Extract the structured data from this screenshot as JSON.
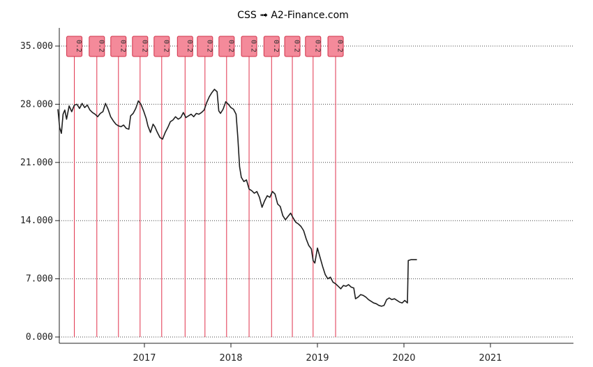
{
  "title": "CSS ➟ A2-Finance.com",
  "chart_data": {
    "type": "line",
    "title": "CSS ➟ A2-Finance.com",
    "xlabel": "",
    "ylabel": "",
    "ylim": [
      0,
      35
    ],
    "xlim": [
      2016.0,
      2022.0
    ],
    "yticks": [
      0,
      7,
      14,
      21,
      28,
      35
    ],
    "ytick_labels": [
      "0.000",
      "7.000",
      "14.000",
      "21.000",
      "28.000",
      "35.000"
    ],
    "xticks": [
      2017,
      2018,
      2019,
      2020,
      2021
    ],
    "xtick_labels": [
      "2017",
      "2018",
      "2019",
      "2020",
      "2021"
    ],
    "grid": "horizontal dotted",
    "series": [
      {
        "values": [
          [
            2016.0,
            27.4
          ],
          [
            2016.02,
            25.2
          ],
          [
            2016.04,
            24.5
          ],
          [
            2016.06,
            26.8
          ],
          [
            2016.08,
            27.3
          ],
          [
            2016.1,
            26.2
          ],
          [
            2016.13,
            27.8
          ],
          [
            2016.16,
            27.1
          ],
          [
            2016.19,
            27.9
          ],
          [
            2016.22,
            28.0
          ],
          [
            2016.25,
            27.5
          ],
          [
            2016.28,
            28.1
          ],
          [
            2016.31,
            27.6
          ],
          [
            2016.34,
            27.9
          ],
          [
            2016.37,
            27.3
          ],
          [
            2016.4,
            27.0
          ],
          [
            2016.43,
            26.8
          ],
          [
            2016.46,
            26.5
          ],
          [
            2016.49,
            26.9
          ],
          [
            2016.52,
            27.1
          ],
          [
            2016.55,
            28.1
          ],
          [
            2016.58,
            27.4
          ],
          [
            2016.61,
            26.5
          ],
          [
            2016.64,
            26.0
          ],
          [
            2016.67,
            25.6
          ],
          [
            2016.7,
            25.4
          ],
          [
            2016.73,
            25.3
          ],
          [
            2016.76,
            25.5
          ],
          [
            2016.79,
            25.1
          ],
          [
            2016.82,
            25.0
          ],
          [
            2016.84,
            26.6
          ],
          [
            2016.87,
            26.9
          ],
          [
            2016.9,
            27.5
          ],
          [
            2016.93,
            28.4
          ],
          [
            2016.96,
            28.0
          ],
          [
            2016.99,
            27.2
          ],
          [
            2017.02,
            26.3
          ],
          [
            2017.04,
            25.4
          ],
          [
            2017.07,
            24.6
          ],
          [
            2017.1,
            25.6
          ],
          [
            2017.12,
            25.3
          ],
          [
            2017.15,
            24.6
          ],
          [
            2017.18,
            24.0
          ],
          [
            2017.21,
            23.8
          ],
          [
            2017.24,
            24.6
          ],
          [
            2017.27,
            25.2
          ],
          [
            2017.3,
            25.9
          ],
          [
            2017.33,
            26.1
          ],
          [
            2017.36,
            26.5
          ],
          [
            2017.39,
            26.2
          ],
          [
            2017.42,
            26.4
          ],
          [
            2017.45,
            27.0
          ],
          [
            2017.48,
            26.4
          ],
          [
            2017.51,
            26.6
          ],
          [
            2017.54,
            26.8
          ],
          [
            2017.57,
            26.5
          ],
          [
            2017.6,
            26.9
          ],
          [
            2017.63,
            26.8
          ],
          [
            2017.66,
            27.0
          ],
          [
            2017.69,
            27.3
          ],
          [
            2017.72,
            28.2
          ],
          [
            2017.75,
            28.9
          ],
          [
            2017.78,
            29.4
          ],
          [
            2017.81,
            29.8
          ],
          [
            2017.84,
            29.5
          ],
          [
            2017.86,
            27.2
          ],
          [
            2017.88,
            26.9
          ],
          [
            2017.91,
            27.4
          ],
          [
            2017.94,
            28.3
          ],
          [
            2017.97,
            28.0
          ],
          [
            2018.0,
            27.6
          ],
          [
            2018.03,
            27.4
          ],
          [
            2018.06,
            26.8
          ],
          [
            2018.08,
            24.0
          ],
          [
            2018.1,
            20.5
          ],
          [
            2018.12,
            19.2
          ],
          [
            2018.15,
            18.7
          ],
          [
            2018.18,
            18.9
          ],
          [
            2018.21,
            17.8
          ],
          [
            2018.24,
            17.6
          ],
          [
            2018.27,
            17.3
          ],
          [
            2018.3,
            17.5
          ],
          [
            2018.33,
            16.8
          ],
          [
            2018.36,
            15.6
          ],
          [
            2018.39,
            16.4
          ],
          [
            2018.42,
            17.0
          ],
          [
            2018.45,
            16.8
          ],
          [
            2018.48,
            17.5
          ],
          [
            2018.51,
            17.2
          ],
          [
            2018.54,
            16.0
          ],
          [
            2018.57,
            15.7
          ],
          [
            2018.6,
            14.6
          ],
          [
            2018.63,
            14.1
          ],
          [
            2018.66,
            14.5
          ],
          [
            2018.69,
            14.9
          ],
          [
            2018.72,
            14.3
          ],
          [
            2018.75,
            13.8
          ],
          [
            2018.78,
            13.6
          ],
          [
            2018.81,
            13.3
          ],
          [
            2018.84,
            12.8
          ],
          [
            2018.87,
            11.8
          ],
          [
            2018.9,
            11.0
          ],
          [
            2018.93,
            10.6
          ],
          [
            2018.95,
            9.2
          ],
          [
            2018.97,
            8.9
          ],
          [
            2019.0,
            10.7
          ],
          [
            2019.03,
            9.6
          ],
          [
            2019.06,
            8.5
          ],
          [
            2019.09,
            7.5
          ],
          [
            2019.12,
            7.0
          ],
          [
            2019.15,
            7.2
          ],
          [
            2019.18,
            6.6
          ],
          [
            2019.21,
            6.4
          ],
          [
            2019.24,
            6.1
          ],
          [
            2019.27,
            5.8
          ],
          [
            2019.3,
            6.2
          ],
          [
            2019.33,
            6.1
          ],
          [
            2019.36,
            6.3
          ],
          [
            2019.39,
            6.0
          ],
          [
            2019.42,
            5.9
          ],
          [
            2019.44,
            4.6
          ],
          [
            2019.47,
            4.8
          ],
          [
            2019.5,
            5.1
          ],
          [
            2019.53,
            5.0
          ],
          [
            2019.56,
            4.8
          ],
          [
            2019.59,
            4.5
          ],
          [
            2019.62,
            4.3
          ],
          [
            2019.65,
            4.1
          ],
          [
            2019.68,
            4.0
          ],
          [
            2019.71,
            3.8
          ],
          [
            2019.74,
            3.7
          ],
          [
            2019.77,
            3.8
          ],
          [
            2019.8,
            4.5
          ],
          [
            2019.83,
            4.7
          ],
          [
            2019.86,
            4.5
          ],
          [
            2019.89,
            4.6
          ],
          [
            2019.92,
            4.4
          ],
          [
            2019.95,
            4.2
          ],
          [
            2019.98,
            4.1
          ],
          [
            2020.01,
            4.4
          ],
          [
            2020.04,
            4.1
          ],
          [
            2020.05,
            9.2
          ],
          [
            2020.08,
            9.3
          ],
          [
            2020.11,
            9.3
          ],
          [
            2020.15,
            9.3
          ]
        ]
      }
    ],
    "dividends": {
      "label": "0.2",
      "dates": [
        2016.19,
        2016.45,
        2016.7,
        2016.95,
        2017.2,
        2017.47,
        2017.7,
        2017.95,
        2018.21,
        2018.47,
        2018.71,
        2018.95,
        2019.21
      ]
    }
  }
}
